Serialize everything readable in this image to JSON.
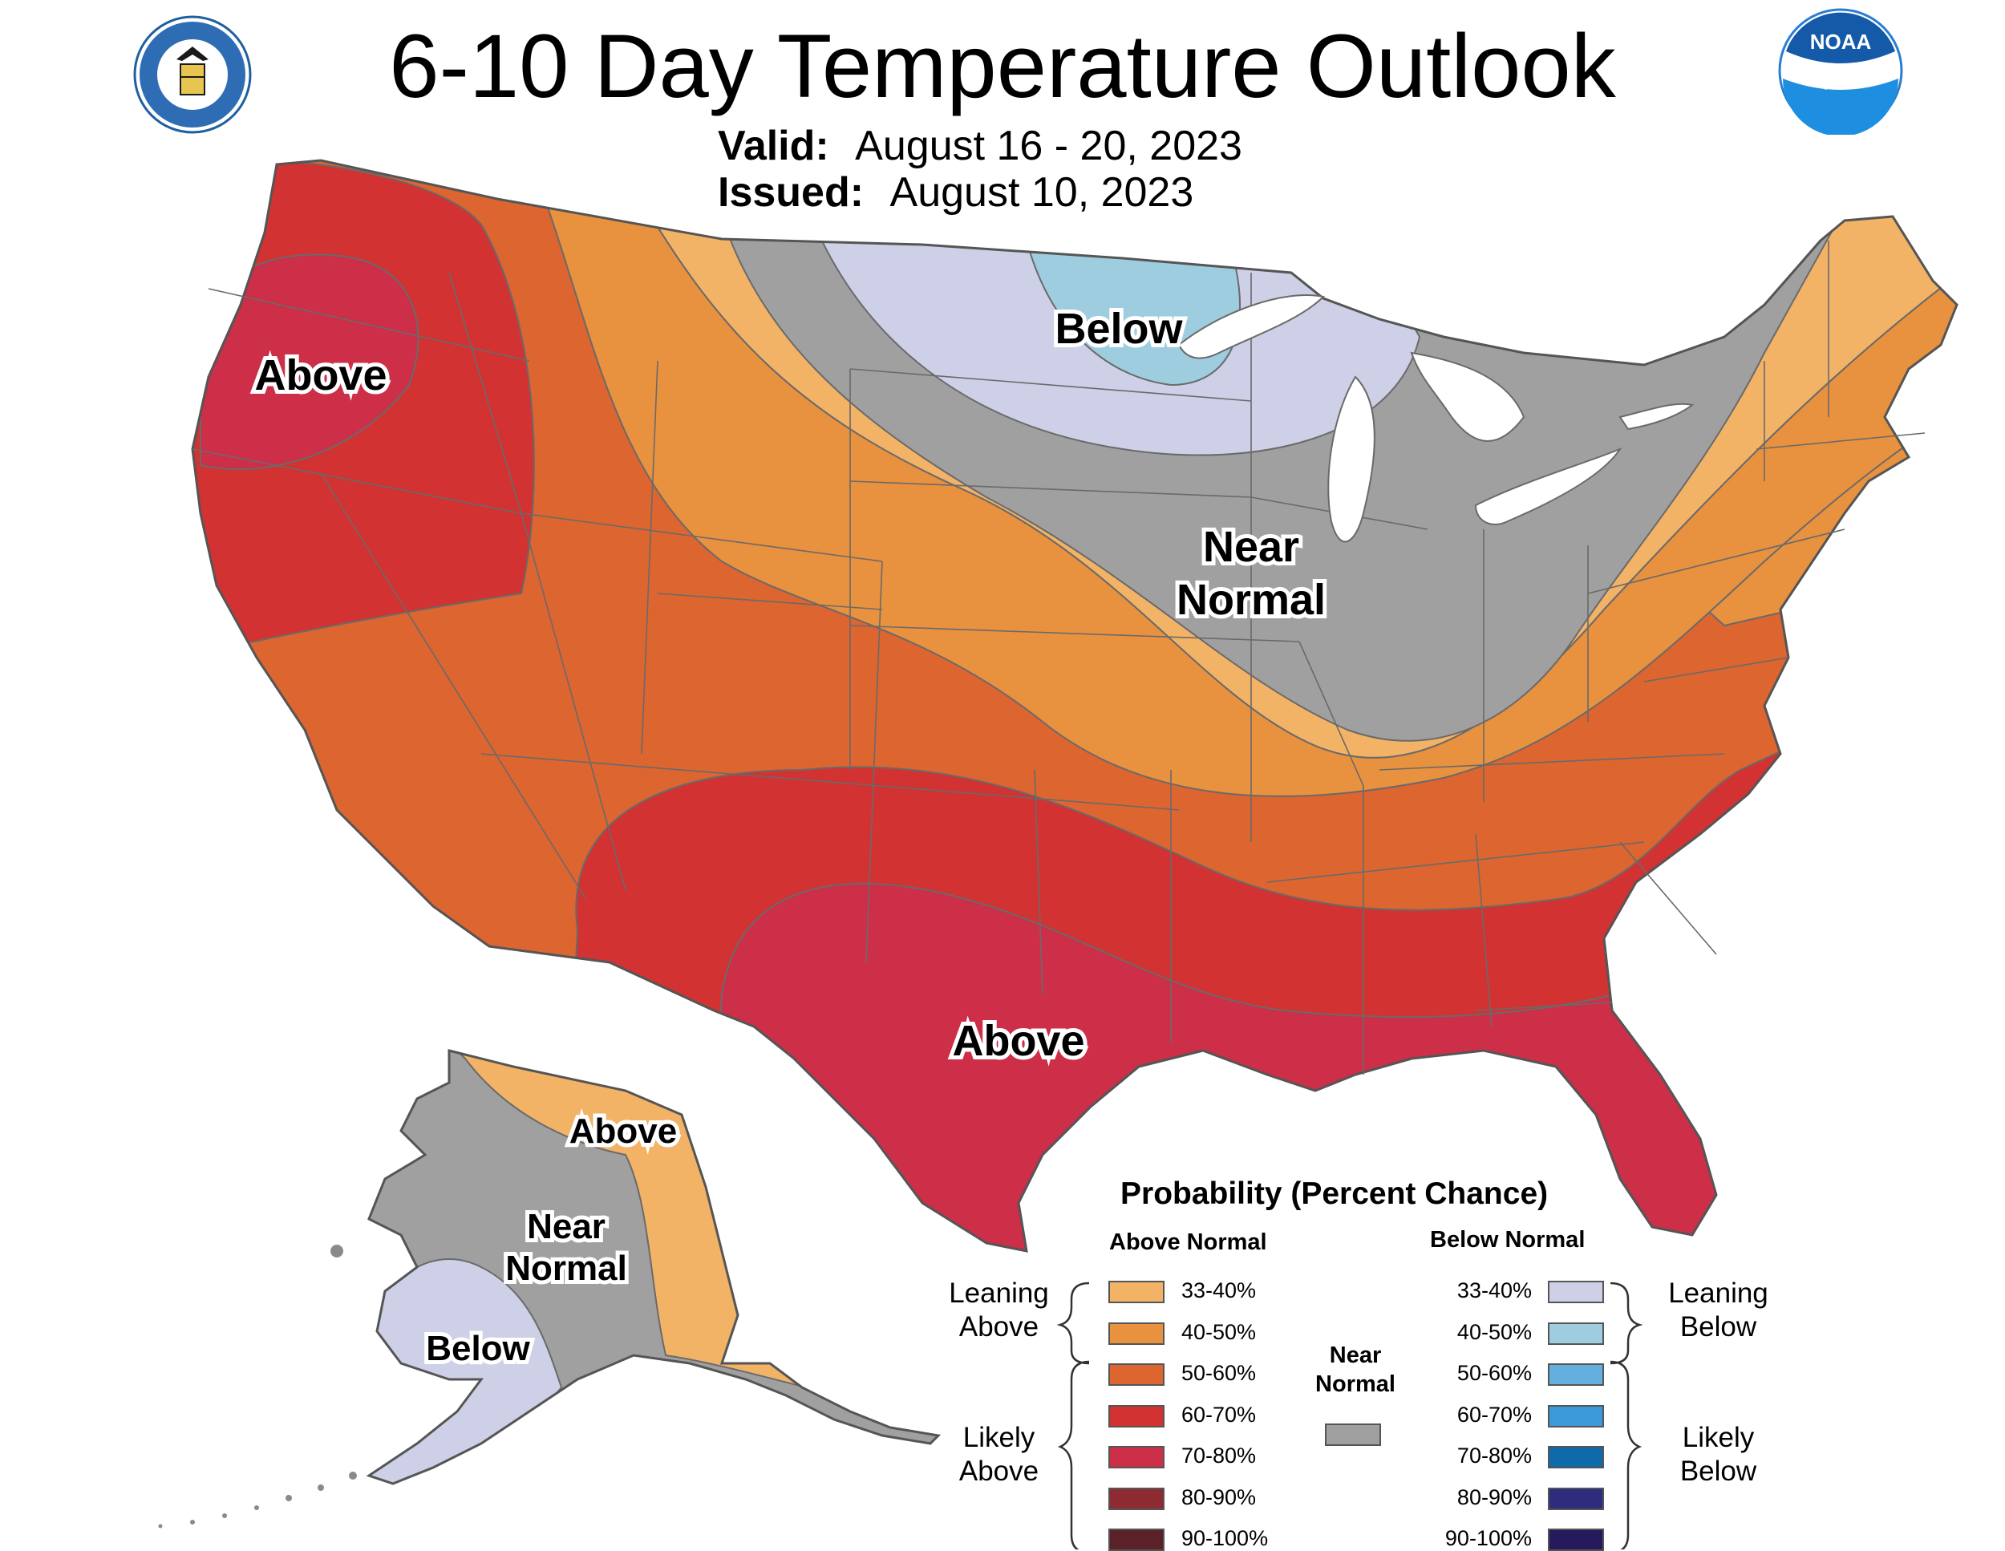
{
  "header": {
    "title": "6-10 Day Temperature Outlook",
    "valid_label": "Valid:",
    "valid_value": "August 16 - 20, 2023",
    "issued_label": "Issued:",
    "issued_value": "August 10, 2023"
  },
  "logos": {
    "commerce_seal": "DEPARTMENT OF COMMERCE UNITED STATES OF AMERICA",
    "noaa": "NOAA"
  },
  "regions": {
    "pnw_above": "Above",
    "south_above": "Above",
    "great_lakes_below": "Below",
    "midwest_near": "Near",
    "midwest_normal": "Normal",
    "alaska_above": "Above",
    "alaska_near": "Near",
    "alaska_normal": "Normal",
    "alaska_below": "Below"
  },
  "colors": {
    "above_33_40": "#F2B366",
    "above_40_50": "#E8913F",
    "above_50_60": "#DC6530",
    "above_60_70": "#D23232",
    "above_70_80": "#CD2E48",
    "above_80_90": "#8E2A32",
    "above_90_100": "#5A2228",
    "near_normal": "#A0A0A0",
    "below_33_40": "#CDD0E6",
    "below_40_50": "#9ECDE0",
    "below_50_60": "#63B0E0",
    "below_60_70": "#3A9AD8",
    "below_70_80": "#0E6AAA",
    "below_80_90": "#2E2C7E",
    "below_90_100": "#241A5C"
  },
  "legend": {
    "title": "Probability (Percent Chance)",
    "above_heading": "Above Normal",
    "below_heading": "Below Normal",
    "near_label_1": "Near",
    "near_label_2": "Normal",
    "leaning_above_1": "Leaning",
    "leaning_above_2": "Above",
    "likely_above_1": "Likely",
    "likely_above_2": "Above",
    "leaning_below_1": "Leaning",
    "leaning_below_2": "Below",
    "likely_below_1": "Likely",
    "likely_below_2": "Below",
    "above_ranges": [
      "33-40%",
      "40-50%",
      "50-60%",
      "60-70%",
      "70-80%",
      "80-90%",
      "90-100%"
    ],
    "below_ranges": [
      "33-40%",
      "40-50%",
      "50-60%",
      "60-70%",
      "70-80%",
      "80-90%",
      "90-100%"
    ]
  }
}
